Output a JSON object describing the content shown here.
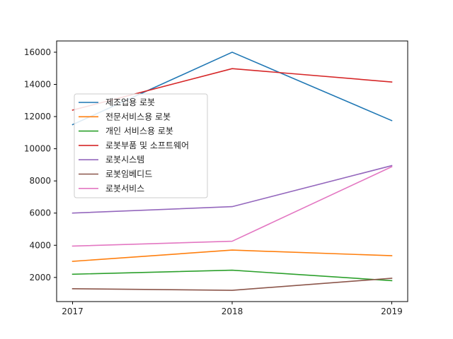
{
  "chart_data": {
    "type": "line",
    "x": [
      2017,
      2018,
      2019
    ],
    "x_tick_labels": [
      "2017",
      "2018",
      "2019"
    ],
    "y_ticks": [
      2000,
      4000,
      6000,
      8000,
      10000,
      12000,
      14000,
      16000
    ],
    "y_tick_labels": [
      "2000",
      "4000",
      "6000",
      "8000",
      "10000",
      "12000",
      "14000",
      "16000"
    ],
    "xlim": [
      2016.9,
      2019.1
    ],
    "ylim": [
      500,
      16700
    ],
    "grid": false,
    "legend_position": "center-left",
    "series": [
      {
        "name": "제조업용 로봇",
        "color": "#1f77b4",
        "values": [
          11500,
          16000,
          11750
        ]
      },
      {
        "name": "전문서비스용 로봇",
        "color": "#ff7f0e",
        "values": [
          3000,
          3700,
          3350
        ]
      },
      {
        "name": "개인 서비스용 로봇",
        "color": "#2ca02c",
        "values": [
          2200,
          2450,
          1800
        ]
      },
      {
        "name": "로봇부품 및 소프트웨어",
        "color": "#d62728",
        "values": [
          12400,
          14980,
          14150
        ]
      },
      {
        "name": "로봇시스템",
        "color": "#9467bd",
        "values": [
          6000,
          6400,
          8950
        ]
      },
      {
        "name": "로봇임베디드",
        "color": "#8c564b",
        "values": [
          1300,
          1200,
          1950
        ]
      },
      {
        "name": "로봇서비스",
        "color": "#e377c2",
        "values": [
          3950,
          4250,
          8880
        ]
      }
    ]
  }
}
